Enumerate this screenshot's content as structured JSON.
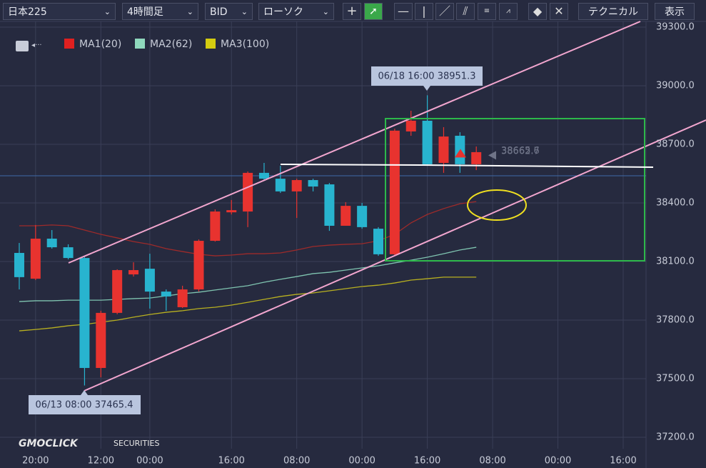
{
  "toolbar": {
    "symbol": "日本225",
    "timeframe": "4時間足",
    "price_type": "BID",
    "chart_type": "ローソク",
    "technical": "テクニカル",
    "display": "表示"
  },
  "logo": {
    "brand": "GMOCLICK",
    "suffix": "SECURITIES"
  },
  "chart_data": {
    "type": "candlestick",
    "up_color": "#e8332f",
    "down_color": "#28b4cf",
    "candles": {
      "open": [
        38144,
        38012,
        38217,
        38173,
        38118,
        37555,
        37837,
        38034,
        38063,
        37946,
        37866,
        37957,
        38206,
        38352,
        38356,
        38554,
        38524,
        38459,
        38517,
        38495,
        38283,
        38385,
        38268,
        38137,
        38766,
        38821,
        38605,
        38744,
        38598
      ],
      "high": [
        38195,
        38287,
        38261,
        38188,
        38129,
        37848,
        38060,
        38096,
        38140,
        37957,
        37976,
        38213,
        38367,
        38415,
        38561,
        38605,
        38590,
        38524,
        38524,
        38502,
        38404,
        38400,
        38276,
        38780,
        38872,
        38951.3,
        38788,
        38762,
        38689
      ],
      "low": [
        37957,
        38005,
        38166,
        38111,
        37465.4,
        37507,
        37830,
        38023,
        37859,
        37848,
        37862,
        37946,
        38202,
        38341,
        38276,
        38517,
        38451,
        38323,
        38459,
        38257,
        38283,
        38268,
        38129,
        38129,
        38744,
        38590,
        38554,
        38554,
        38568
      ],
      "close": [
        38020,
        38217,
        38173,
        38118,
        37555,
        37837,
        38056,
        38056,
        37946,
        37921,
        37957,
        38206,
        38356,
        38363,
        38554,
        38524,
        38459,
        38517,
        38484,
        38283,
        38385,
        38276,
        38137,
        38770,
        38821,
        38598,
        38740,
        38598,
        38660
      ]
    },
    "series": [
      {
        "name": "MA1(20)",
        "color": "#e02020",
        "line_color": "#9e2a2a",
        "values": [
          38283,
          38283,
          38287,
          38283,
          38261,
          38239,
          38221,
          38202,
          38188,
          38166,
          38151,
          38137,
          38129,
          38133,
          38140,
          38140,
          38144,
          38159,
          38177,
          38184,
          38188,
          38191,
          38206,
          38239,
          38298,
          38341,
          38371,
          38396,
          38407
        ]
      },
      {
        "name": "MA2(62)",
        "color": "#8fd8bd",
        "line_color": "#7fc4b0",
        "values": [
          37895,
          37899,
          37899,
          37902,
          37902,
          37902,
          37906,
          37910,
          37913,
          37924,
          37935,
          37943,
          37954,
          37965,
          37976,
          37994,
          38009,
          38023,
          38038,
          38045,
          38056,
          38067,
          38078,
          38093,
          38107,
          38122,
          38140,
          38159,
          38173
        ]
      },
      {
        "name": "MA3(100)",
        "color": "#d4cc10",
        "line_color": "#b8b020",
        "values": [
          37745,
          37752,
          37760,
          37771,
          37778,
          37789,
          37800,
          37815,
          37829,
          37840,
          37848,
          37859,
          37866,
          37877,
          37891,
          37906,
          37921,
          37932,
          37939,
          37950,
          37961,
          37972,
          37979,
          37990,
          38005,
          38012,
          38020,
          38020,
          38020
        ]
      }
    ],
    "ylim": [
      37141.5,
      39329.3
    ],
    "yticks": [
      {
        "value": 37200,
        "label": "37200.0"
      },
      {
        "value": 37500,
        "label": "37500.0"
      },
      {
        "value": 37800,
        "label": "37800.0"
      },
      {
        "value": 38100,
        "label": "38100.0"
      },
      {
        "value": 38400,
        "label": "38400.0"
      },
      {
        "value": 38700,
        "label": "38700.0"
      },
      {
        "value": 39000,
        "label": "39000.0"
      },
      {
        "value": 39300,
        "label": "39300.0"
      }
    ],
    "xlim": [
      -1.18,
      38.4
    ],
    "xticks": [
      {
        "value": 1,
        "label": "20:00"
      },
      {
        "value": 5,
        "label": "12:00"
      },
      {
        "value": 8,
        "label": "00:00"
      },
      {
        "value": 13,
        "label": "16:00"
      },
      {
        "value": 17,
        "label": "08:00"
      },
      {
        "value": 21,
        "label": "00:00"
      },
      {
        "value": 25,
        "label": "16:00"
      },
      {
        "value": 29,
        "label": "08:00"
      },
      {
        "value": 33,
        "label": "00:00"
      },
      {
        "value": 37,
        "label": "16:00"
      }
    ],
    "reference_line": 38539,
    "last_prices": [
      38665.6,
      38662.7
    ],
    "annotations": [
      "06/18 16:00 38951.3",
      "06/13 08:00 37465.4"
    ],
    "grid": true
  }
}
